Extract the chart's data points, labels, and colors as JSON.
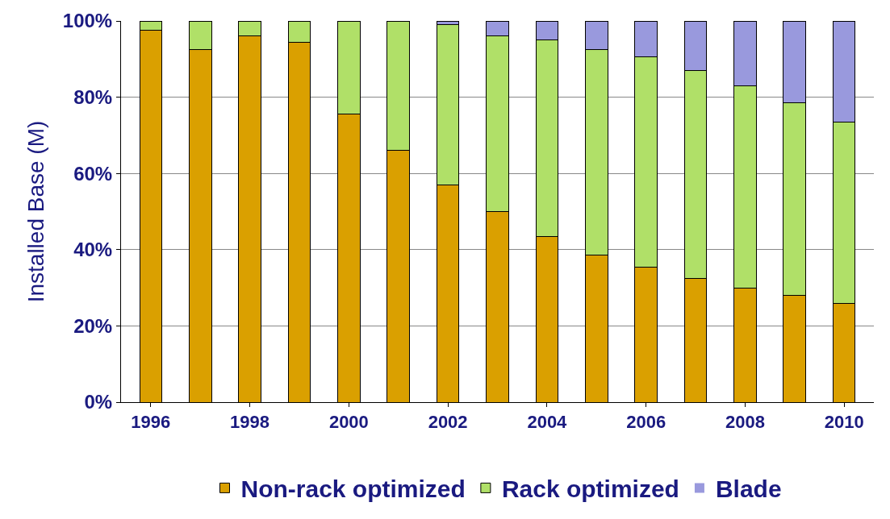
{
  "chart_data": {
    "type": "bar",
    "stacked": true,
    "ylabel": "Installed Base (M)",
    "categories": [
      "1996",
      null,
      "1998",
      null,
      "2000",
      null,
      "2002",
      null,
      "2004",
      null,
      "2006",
      null,
      "2008",
      null,
      "2010"
    ],
    "series": [
      {
        "name": "Non-rack optimized",
        "color": "#daa000",
        "values": [
          97.5,
          92.5,
          96,
          94.5,
          75.5,
          66,
          57,
          50,
          43.5,
          38.5,
          35.5,
          32.5,
          30,
          28,
          26
        ]
      },
      {
        "name": "Rack optimized",
        "color": "#b0e068",
        "values": [
          2.5,
          7.5,
          4,
          5.5,
          24.5,
          34,
          42,
          46,
          51.5,
          54,
          55,
          54.5,
          53,
          50.5,
          47.5
        ]
      },
      {
        "name": "Blade",
        "color": "#9999dd",
        "values": [
          0,
          0,
          0,
          0,
          0,
          0,
          1,
          4,
          5,
          7.5,
          9.5,
          13,
          17,
          21.5,
          26.5
        ]
      }
    ],
    "ylim": [
      0,
      100
    ],
    "yticks": [
      {
        "value": 0,
        "label": "0%"
      },
      {
        "value": 20,
        "label": "20%"
      },
      {
        "value": 40,
        "label": "40%"
      },
      {
        "value": 60,
        "label": "60%"
      },
      {
        "value": 80,
        "label": "80%"
      },
      {
        "value": 100,
        "label": "100%"
      }
    ],
    "grid": "y",
    "legend": "bottom"
  }
}
